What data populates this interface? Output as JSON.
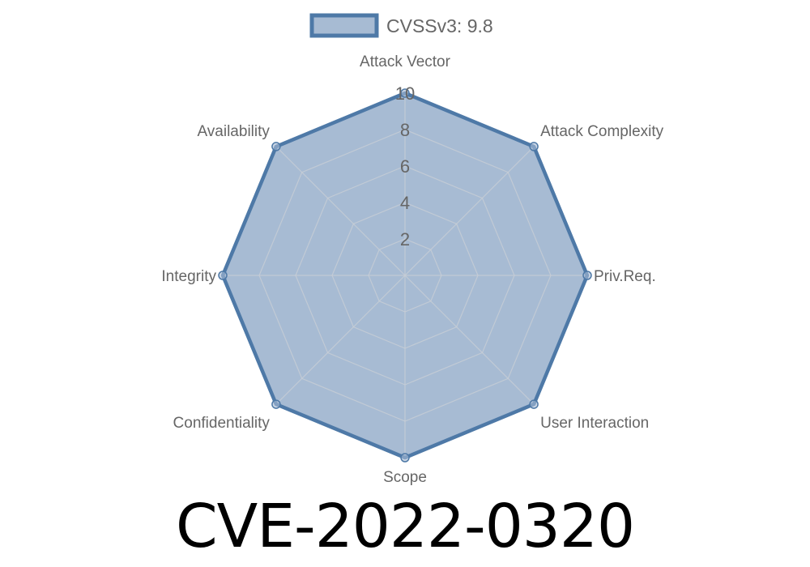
{
  "chart_data": {
    "type": "radar",
    "categories": [
      "Attack Vector",
      "Attack Complexity",
      "Priv.Req.",
      "User Interaction",
      "Scope",
      "Confidentiality",
      "Integrity",
      "Availability"
    ],
    "series": [
      {
        "name": "CVSSv3: 9.8",
        "values": [
          10,
          10,
          10,
          10,
          10,
          10,
          10,
          10
        ]
      }
    ],
    "rlim": [
      0,
      10
    ],
    "ticks": [
      "2",
      "4",
      "6",
      "8",
      "10"
    ],
    "legend": "top",
    "grid": true,
    "colors": {
      "stroke": "#4e79a7",
      "fill": "#a7bbd3",
      "grid": "#c8ced6",
      "text": "#666666"
    }
  },
  "title": "CVE-2022-0320"
}
